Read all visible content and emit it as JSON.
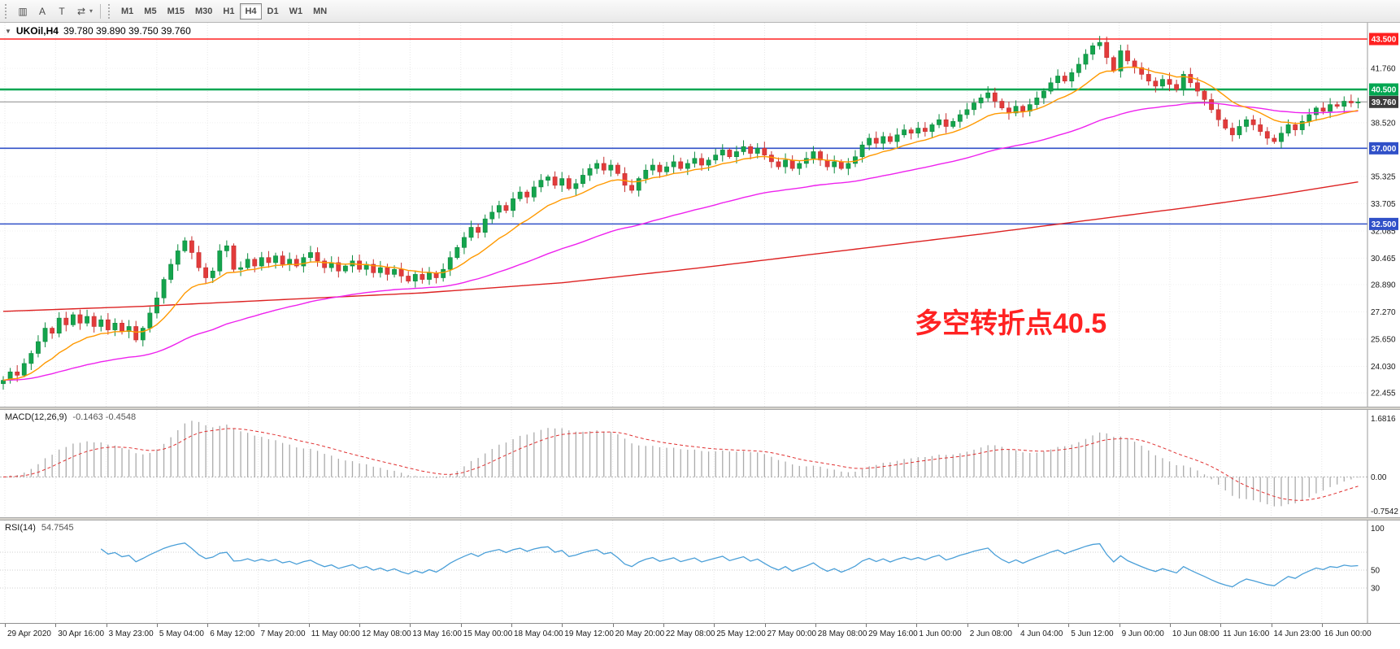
{
  "toolbar": {
    "icons": [
      {
        "name": "chart-window-icon",
        "glyph": "▥"
      },
      {
        "name": "arrow-tool-icon",
        "glyph": "A"
      },
      {
        "name": "text-tool-icon",
        "glyph": "T"
      },
      {
        "name": "cycle-lines-tool-icon",
        "glyph": "⇄"
      }
    ],
    "dropdown_caret": "▾",
    "timeframes": [
      "M1",
      "M5",
      "M15",
      "M30",
      "H1",
      "H4",
      "D1",
      "W1",
      "MN"
    ],
    "active_timeframe": "H4"
  },
  "chart": {
    "collapse_icon": "▼",
    "symbol": "UKOil,H4",
    "ohlc": "39.780 39.890 39.750 39.760",
    "annotation": {
      "text": "多空转折点40.5",
      "color": "#ff2222"
    },
    "levels": [
      {
        "value": 43.5,
        "label": "43.500",
        "color": "#ff2020",
        "badge_bg": "#ff2020",
        "width": 1.6
      },
      {
        "value": 40.5,
        "label": "40.500",
        "color": "#00a651",
        "badge_bg": "#00a651",
        "width": 2.5
      },
      {
        "value": 39.76,
        "label": "39.760",
        "color": "#8a8a8a",
        "badge_bg": "#3c3c3c",
        "width": 1
      },
      {
        "value": 37.0,
        "label": "37.000",
        "color": "#3050c8",
        "badge_bg": "#3050c8",
        "width": 1.6
      },
      {
        "value": 32.5,
        "label": "32.500",
        "color": "#3050c8",
        "badge_bg": "#3050c8",
        "width": 1.6
      }
    ],
    "price_axis": [
      "41.760",
      "38.520",
      "35.325",
      "33.705",
      "32.085",
      "30.465",
      "28.890",
      "27.270",
      "25.650",
      "24.030",
      "22.455"
    ],
    "time_axis": [
      "29 Apr 2020",
      "30 Apr 16:00",
      "3 May 23:00",
      "5 May 04:00",
      "6 May 12:00",
      "7 May 20:00",
      "11 May 00:00",
      "12 May 08:00",
      "13 May 16:00",
      "15 May 00:00",
      "18 May 04:00",
      "19 May 12:00",
      "20 May 20:00",
      "22 May 08:00",
      "25 May 12:00",
      "27 May 00:00",
      "28 May 08:00",
      "29 May 16:00",
      "1 Jun 00:00",
      "2 Jun 08:00",
      "4 Jun 04:00",
      "5 Jun 12:00",
      "9 Jun 00:00",
      "10 Jun 08:00",
      "11 Jun 16:00",
      "14 Jun 23:00",
      "16 Jun 00:00"
    ]
  },
  "macd": {
    "label": "MACD(12,26,9)",
    "values": "-0.1463 -0.4548",
    "axis": {
      "max": "1.6816",
      "zero": "0.00",
      "min": "-0.7542"
    }
  },
  "rsi": {
    "label": "RSI(14)",
    "value": "54.7545",
    "axis": {
      "top": "100",
      "mid": "50",
      "low": "30"
    }
  },
  "chart_data": {
    "type": "candlestick",
    "symbol": "UKOil",
    "timeframe": "H4",
    "title": "UKOil H4 with MACD(12,26,9) and RSI(14)",
    "y_range": [
      22.0,
      44.5
    ],
    "last_ohlc": {
      "open": 39.78,
      "high": 39.89,
      "low": 39.75,
      "close": 39.76
    },
    "horizontal_levels": [
      43.5,
      40.5,
      39.76,
      37.0,
      32.5
    ],
    "closes": [
      23.2,
      23.7,
      23.5,
      24.2,
      24.8,
      25.5,
      26.3,
      26.0,
      26.9,
      26.5,
      27.1,
      26.6,
      27.0,
      26.4,
      26.8,
      26.2,
      26.6,
      26.1,
      26.4,
      25.6,
      26.3,
      27.2,
      28.1,
      29.2,
      30.1,
      30.9,
      31.5,
      30.8,
      29.9,
      29.3,
      29.7,
      30.9,
      31.2,
      29.8,
      29.9,
      30.4,
      30.0,
      30.5,
      30.2,
      30.6,
      30.1,
      30.4,
      30.0,
      30.5,
      30.8,
      30.3,
      29.9,
      30.2,
      29.7,
      30.0,
      30.3,
      29.8,
      30.1,
      29.6,
      29.9,
      29.5,
      29.8,
      29.4,
      29.1,
      29.5,
      29.2,
      29.6,
      29.3,
      29.8,
      30.5,
      31.1,
      31.7,
      32.3,
      32.0,
      32.8,
      33.2,
      33.6,
      33.3,
      34.0,
      34.4,
      34.1,
      34.7,
      35.1,
      35.3,
      34.8,
      35.2,
      34.6,
      34.9,
      35.4,
      35.8,
      36.1,
      35.7,
      36.0,
      35.5,
      34.8,
      34.5,
      35.2,
      35.7,
      36.0,
      35.6,
      35.9,
      36.2,
      35.8,
      36.1,
      36.4,
      36.0,
      36.3,
      36.6,
      36.9,
      36.5,
      36.8,
      37.1,
      36.7,
      37.0,
      36.6,
      36.2,
      35.9,
      36.3,
      35.8,
      36.1,
      36.4,
      36.8,
      36.3,
      35.9,
      36.2,
      35.8,
      36.1,
      36.5,
      37.2,
      37.6,
      37.3,
      37.7,
      37.4,
      37.8,
      38.1,
      37.9,
      38.2,
      38.0,
      38.4,
      38.7,
      38.3,
      38.6,
      39.0,
      39.3,
      39.7,
      40.0,
      40.3,
      39.8,
      39.4,
      39.1,
      39.5,
      39.2,
      39.6,
      40.0,
      40.4,
      40.9,
      41.3,
      41.0,
      41.5,
      42.0,
      42.6,
      43.1,
      43.3,
      42.4,
      41.6,
      42.8,
      42.2,
      41.8,
      41.4,
      41.0,
      40.7,
      41.1,
      40.8,
      40.5,
      41.4,
      40.9,
      40.4,
      39.9,
      39.3,
      38.7,
      38.2,
      37.8,
      38.3,
      38.7,
      38.4,
      38.0,
      37.6,
      37.4,
      37.9,
      38.4,
      38.1,
      38.6,
      39.0,
      39.4,
      39.2,
      39.6,
      39.5,
      39.8,
      39.7,
      39.76
    ],
    "overlays": {
      "orange_ma_period": 13,
      "magenta_ma_period": 55,
      "red_ma_points": [
        [
          0,
          27.3
        ],
        [
          20,
          27.6
        ],
        [
          40,
          28.0
        ],
        [
          60,
          28.4
        ],
        [
          80,
          29.0
        ],
        [
          100,
          29.9
        ],
        [
          120,
          30.9
        ],
        [
          140,
          31.9
        ],
        [
          155,
          32.7
        ],
        [
          170,
          33.5
        ],
        [
          182,
          34.2
        ],
        [
          194,
          35.0
        ]
      ]
    },
    "indicators": {
      "macd": [
        12,
        26,
        9
      ],
      "rsi": 14
    }
  }
}
